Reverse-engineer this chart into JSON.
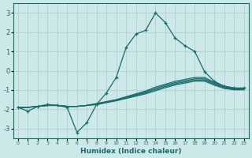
{
  "xlabel": "Humidex (Indice chaleur)",
  "xlim": [
    -0.5,
    23.5
  ],
  "ylim": [
    -3.5,
    3.5
  ],
  "yticks": [
    -3,
    -2,
    -1,
    0,
    1,
    2,
    3
  ],
  "xticks": [
    0,
    1,
    2,
    3,
    4,
    5,
    6,
    7,
    8,
    9,
    10,
    11,
    12,
    13,
    14,
    15,
    16,
    17,
    18,
    19,
    20,
    21,
    22,
    23
  ],
  "bg_color": "#cce8e8",
  "grid_color": "#b0d0d0",
  "line_color": "#1a6b6b",
  "x": [
    0,
    1,
    2,
    3,
    4,
    5,
    6,
    7,
    8,
    9,
    10,
    11,
    12,
    13,
    14,
    15,
    16,
    17,
    18,
    19,
    20,
    21,
    22,
    23
  ],
  "main_line": [
    -1.9,
    -2.1,
    -1.85,
    -1.75,
    -1.8,
    -1.9,
    -3.2,
    -2.7,
    -1.75,
    -1.15,
    -0.35,
    1.2,
    1.9,
    2.1,
    3.0,
    2.5,
    1.7,
    1.3,
    1.0,
    -0.05,
    -0.55,
    -0.8,
    -0.9,
    -0.9
  ],
  "smooth_lines": [
    [
      -1.9,
      -1.9,
      -1.85,
      -1.8,
      -1.8,
      -1.85,
      -1.85,
      -1.8,
      -1.7,
      -1.6,
      -1.5,
      -1.35,
      -1.2,
      -1.05,
      -0.85,
      -0.7,
      -0.55,
      -0.45,
      -0.35,
      -0.35,
      -0.6,
      -0.8,
      -0.9,
      -0.9
    ],
    [
      -1.9,
      -1.9,
      -1.85,
      -1.8,
      -1.8,
      -1.85,
      -1.85,
      -1.8,
      -1.72,
      -1.62,
      -1.52,
      -1.38,
      -1.24,
      -1.1,
      -0.92,
      -0.76,
      -0.62,
      -0.52,
      -0.42,
      -0.42,
      -0.65,
      -0.84,
      -0.93,
      -0.93
    ],
    [
      -1.9,
      -1.9,
      -1.85,
      -1.8,
      -1.8,
      -1.85,
      -1.85,
      -1.8,
      -1.74,
      -1.64,
      -1.54,
      -1.41,
      -1.28,
      -1.15,
      -0.98,
      -0.82,
      -0.68,
      -0.58,
      -0.48,
      -0.48,
      -0.7,
      -0.88,
      -0.96,
      -0.96
    ],
    [
      -1.9,
      -1.9,
      -1.85,
      -1.8,
      -1.8,
      -1.85,
      -1.85,
      -1.8,
      -1.76,
      -1.66,
      -1.56,
      -1.44,
      -1.32,
      -1.2,
      -1.04,
      -0.88,
      -0.74,
      -0.64,
      -0.54,
      -0.54,
      -0.75,
      -0.92,
      -0.99,
      -0.99
    ]
  ]
}
